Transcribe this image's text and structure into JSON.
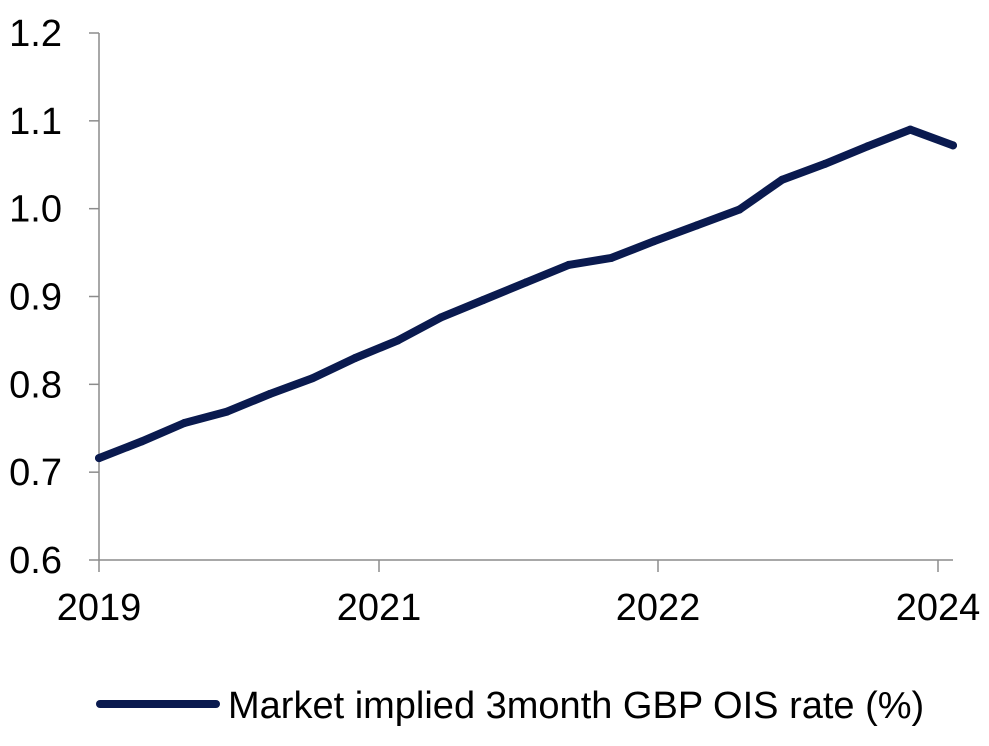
{
  "chart_data": {
    "type": "line",
    "title": "",
    "xlabel": "",
    "ylabel": "",
    "ylim": [
      0.6,
      1.2
    ],
    "y_ticks": [
      "0.6",
      "0.7",
      "0.8",
      "0.9",
      "1.0",
      "1.1",
      "1.2"
    ],
    "x_tick_labels": [
      "2019",
      "2021",
      "2022",
      "2024"
    ],
    "grid": false,
    "legend_position": "bottom",
    "series": [
      {
        "name": "Market implied 3month GBP OIS rate (%)",
        "color": "#0a1a4f",
        "points": [
          [
            0,
            0.716
          ],
          [
            1,
            0.735
          ],
          [
            2,
            0.756
          ],
          [
            3,
            0.769
          ],
          [
            4,
            0.789
          ],
          [
            5,
            0.807
          ],
          [
            6,
            0.83
          ],
          [
            7,
            0.85
          ],
          [
            8,
            0.876
          ],
          [
            9,
            0.896
          ],
          [
            10,
            0.916
          ],
          [
            11,
            0.936
          ],
          [
            12,
            0.944
          ],
          [
            13,
            0.963
          ],
          [
            14,
            0.981
          ],
          [
            15,
            0.999
          ],
          [
            16,
            1.033
          ],
          [
            17,
            1.051
          ],
          [
            18,
            1.071
          ],
          [
            19,
            1.09
          ],
          [
            20,
            1.072
          ]
        ]
      }
    ]
  }
}
